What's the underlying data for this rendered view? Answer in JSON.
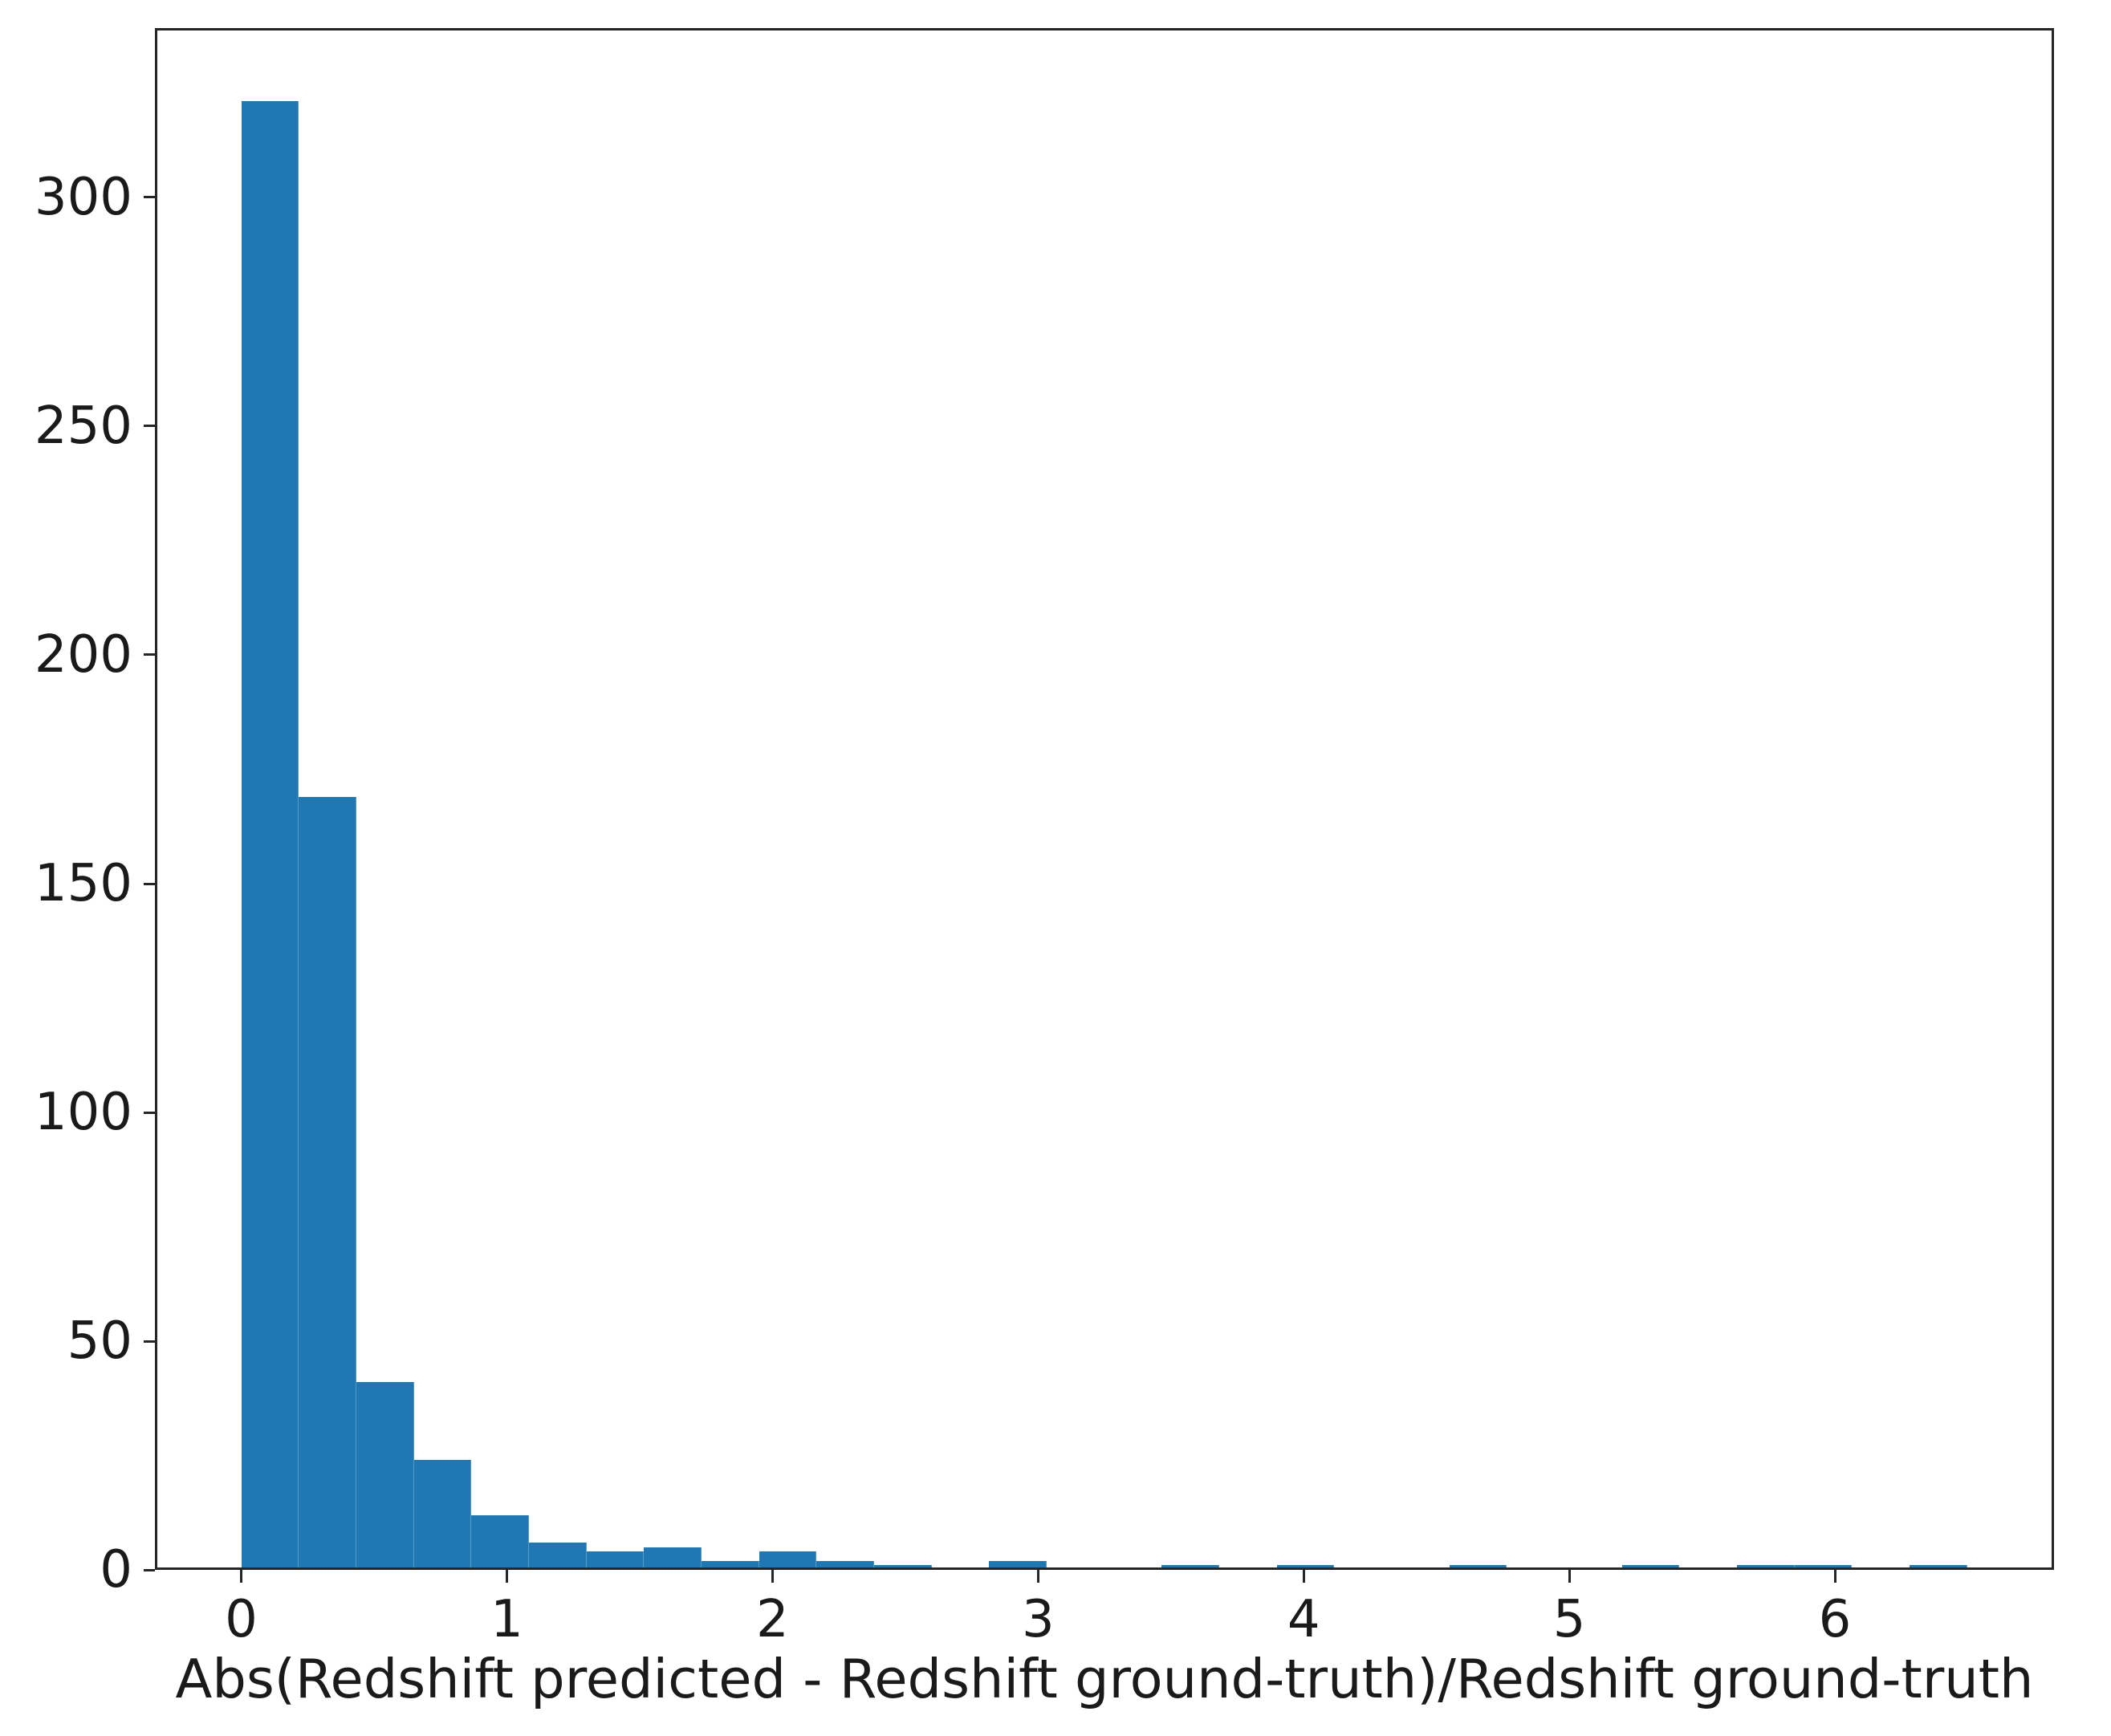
{
  "chart_data": {
    "type": "bar",
    "subtype": "histogram",
    "title": "",
    "xlabel": "Abs(Redshift predicted - Redshift ground-truth)/Redshift ground-truth",
    "ylabel": "",
    "bins": {
      "start": 0,
      "width": 0.2166,
      "count": 30
    },
    "counts": [
      321,
      169,
      41,
      24,
      12,
      6,
      4,
      5,
      2,
      4,
      2,
      1,
      0,
      2,
      0,
      0,
      1,
      0,
      1,
      0,
      0,
      1,
      0,
      0,
      1,
      0,
      1,
      1,
      0,
      1
    ],
    "x_ticks": [
      0,
      1,
      2,
      3,
      4,
      5,
      6
    ],
    "y_ticks": [
      0,
      50,
      100,
      150,
      200,
      250,
      300
    ],
    "xlim": [
      -0.325,
      6.825
    ],
    "ylim": [
      0,
      337
    ],
    "grid": false,
    "legend": false,
    "colors": {
      "bar": "#1f77b4",
      "axis": "#262626",
      "text": "#1a1a1a",
      "background": "#ffffff"
    }
  }
}
